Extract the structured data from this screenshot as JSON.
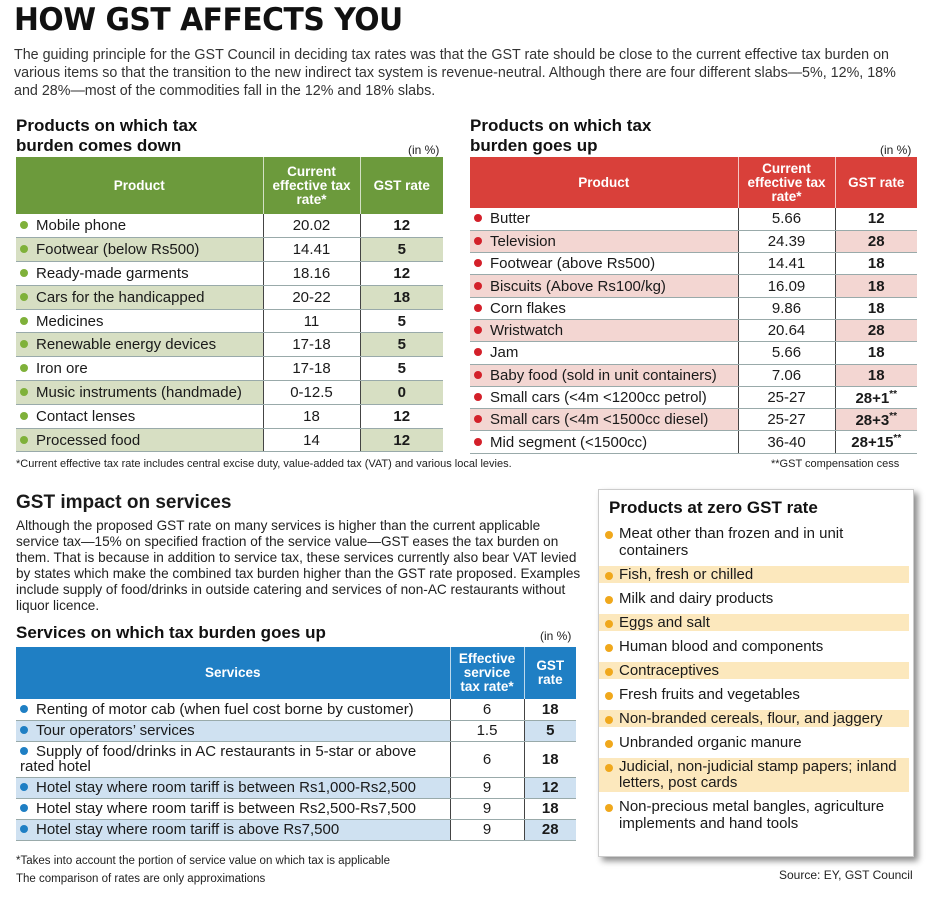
{
  "title": "HOW GST AFFECTS YOU",
  "intro": "The guiding principle for the GST Council in deciding tax rates was that the GST rate should be close to the current effective tax burden on various items so that the transition to the new indirect tax system is revenue-neutral. Although there are four different slabs—5%, 12%, 18% and 28%—most of the commodities fall in the 12% and 18% slabs.",
  "down": {
    "heading_1": "Products on which tax",
    "heading_2": "burden comes down",
    "unit": "(in %)",
    "col_product": "Product",
    "col_current": "Current effective tax rate*",
    "col_gst": "GST rate",
    "rows": [
      {
        "product": "Mobile phone",
        "current": "20.02",
        "gst": "12"
      },
      {
        "product": "Footwear (below Rs500)",
        "current": "14.41",
        "gst": "5"
      },
      {
        "product": "Ready-made garments",
        "current": "18.16",
        "gst": "12"
      },
      {
        "product": "Cars for the handicapped",
        "current": "20-22",
        "gst": "18"
      },
      {
        "product": "Medicines",
        "current": "11",
        "gst": "5"
      },
      {
        "product": "Renewable energy devices",
        "current": "17-18",
        "gst": "5"
      },
      {
        "product": "Iron ore",
        "current": "17-18",
        "gst": "5"
      },
      {
        "product": "Music instruments (handmade)",
        "current": "0-12.5",
        "gst": "0"
      },
      {
        "product": "Contact lenses",
        "current": "18",
        "gst": "12"
      },
      {
        "product": "Processed food",
        "current": "14",
        "gst": "12"
      }
    ]
  },
  "up": {
    "heading_1": "Products on which tax",
    "heading_2": "burden goes up",
    "unit": "(in %)",
    "col_product": "Product",
    "col_current": "Current effective tax rate*",
    "col_gst": "GST rate",
    "rows": [
      {
        "product": "Butter",
        "current": "5.66",
        "gst": "12",
        "sup": ""
      },
      {
        "product": "Television",
        "current": "24.39",
        "gst": "28",
        "sup": ""
      },
      {
        "product": "Footwear (above Rs500)",
        "current": "14.41",
        "gst": "18",
        "sup": ""
      },
      {
        "product": "Biscuits (Above Rs100/kg)",
        "current": "16.09",
        "gst": "18",
        "sup": ""
      },
      {
        "product": "Corn flakes",
        "current": "9.86",
        "gst": "18",
        "sup": ""
      },
      {
        "product": "Wristwatch",
        "current": "20.64",
        "gst": "28",
        "sup": ""
      },
      {
        "product": "Jam",
        "current": "5.66",
        "gst": "18",
        "sup": ""
      },
      {
        "product": "Baby food (sold in unit containers)",
        "current": "7.06",
        "gst": "18",
        "sup": ""
      },
      {
        "product": "Small cars (<4m <1200cc petrol)",
        "current": "25-27",
        "gst": "28+1",
        "sup": "**"
      },
      {
        "product": "Small cars (<4m <1500cc diesel)",
        "current": "25-27",
        "gst": "28+3",
        "sup": "**"
      },
      {
        "product": "Mid segment (<1500cc)",
        "current": "36-40",
        "gst": "28+15",
        "sup": "**"
      }
    ]
  },
  "footnote_left": "*Current effective tax rate includes central excise duty, value-added tax (VAT) and various local levies.",
  "footnote_right": "**GST compensation cess",
  "services": {
    "heading": "GST impact on services",
    "text": "Although the proposed GST rate on many services is higher than the current applicable service tax—15% on specified fraction of the service value—GST eases the tax burden on them. That is because in addition to service tax, these services currently also bear VAT levied by states which make the combined tax burden higher than the GST rate proposed. Examples include supply of food/drinks in outside catering and services of non-AC restaurants without liquor licence.",
    "table_heading": "Services on which tax burden goes up",
    "unit": "(in %)",
    "col_services": "Services",
    "col_effective": "Effective service tax rate*",
    "col_gst": "GST rate",
    "rows": [
      {
        "service": "Renting of motor cab (when fuel cost borne by customer)",
        "effective": "6",
        "gst": "18"
      },
      {
        "service": "Tour operators’ services",
        "effective": "1.5",
        "gst": "5"
      },
      {
        "service": "Supply of food/drinks in AC restaurants in 5-star or above rated hotel",
        "effective": "6",
        "gst": "18"
      },
      {
        "service": "Hotel stay where room tariff is between Rs1,000-Rs2,500",
        "effective": "9",
        "gst": "12"
      },
      {
        "service": "Hotel stay where room tariff is between Rs2,500-Rs7,500",
        "effective": "9",
        "gst": "18"
      },
      {
        "service": "Hotel stay where room tariff is above Rs7,500",
        "effective": "9",
        "gst": "28"
      }
    ],
    "footnote_1": "*Takes into account the portion of service value on which tax is applicable",
    "footnote_2": "The comparison of rates are only approximations"
  },
  "zero": {
    "heading": "Products at zero GST rate",
    "items": [
      "Meat other than frozen and in unit containers",
      "Fish, fresh or chilled",
      "Milk and dairy products",
      "Eggs and salt",
      "Human blood and components",
      "Contraceptives",
      "Fresh fruits and vegetables",
      "Non-branded cereals, flour, and jaggery",
      "Unbranded organic manure",
      "Judicial, non-judicial stamp papers; inland letters, post cards",
      "Non-precious metal bangles, agriculture implements and hand tools"
    ]
  },
  "source": "Source: EY, GST Council",
  "colors": {
    "green": "#6c9a3c",
    "red": "#d9403a",
    "blue": "#1f7fc4",
    "yellow": "#f0a81c"
  }
}
